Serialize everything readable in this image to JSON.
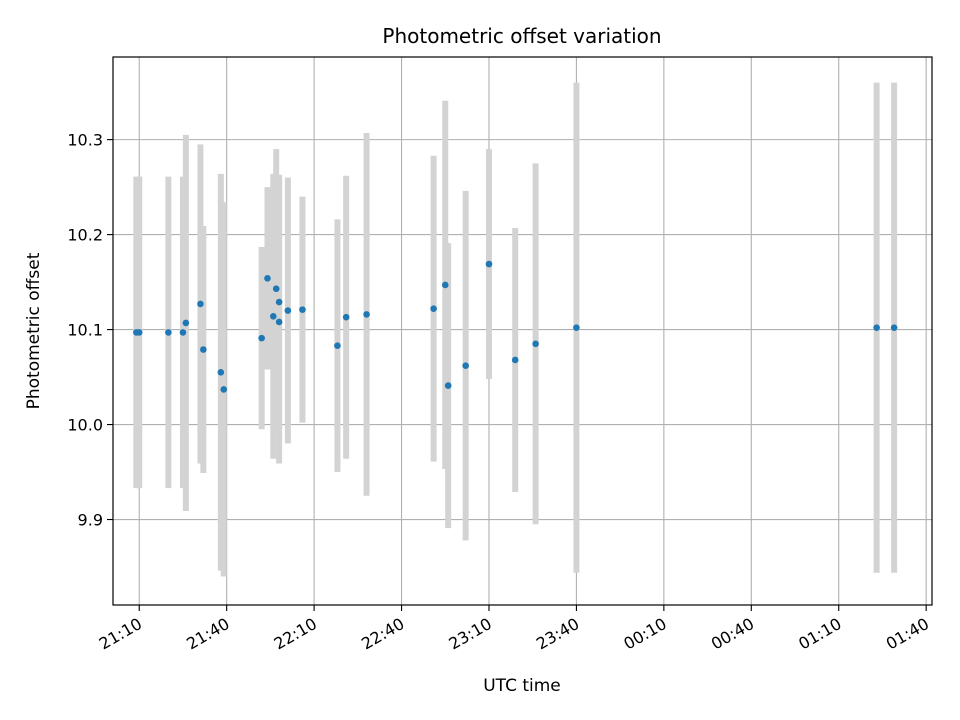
{
  "chart_data": {
    "type": "scatter",
    "title": "Photometric offset variation",
    "xlabel": "UTC time",
    "ylabel": "Photometric offset",
    "xlim": [
      "21:01",
      "01:42"
    ],
    "ylim": [
      9.81,
      10.387
    ],
    "grid": true,
    "x_ticks": [
      "21:10",
      "21:40",
      "22:10",
      "22:40",
      "23:10",
      "23:40",
      "00:10",
      "00:40",
      "01:10",
      "01:40"
    ],
    "y_ticks": [
      "9.9",
      "10.0",
      "10.1",
      "10.2",
      "10.3"
    ],
    "colors": {
      "point": "#1f77b4",
      "errorbar": "#d3d3d3",
      "grid": "#b0b0b0"
    },
    "series": [
      {
        "points": [
          {
            "x": "21:09",
            "y": 10.097,
            "err": 0.164
          },
          {
            "x": "21:10",
            "y": 10.097,
            "err": 0.164
          },
          {
            "x": "21:20",
            "y": 10.097,
            "err": 0.164
          },
          {
            "x": "21:25",
            "y": 10.097,
            "err": 0.164
          },
          {
            "x": "21:26",
            "y": 10.107,
            "err": 0.198
          },
          {
            "x": "21:31",
            "y": 10.127,
            "err": 0.168
          },
          {
            "x": "21:32",
            "y": 10.079,
            "err": 0.13
          },
          {
            "x": "21:38",
            "y": 10.055,
            "err": 0.209
          },
          {
            "x": "21:39",
            "y": 10.037,
            "err": 0.197
          },
          {
            "x": "21:52",
            "y": 10.091,
            "err": 0.096
          },
          {
            "x": "21:54",
            "y": 10.154,
            "err": 0.096
          },
          {
            "x": "21:56",
            "y": 10.114,
            "err": 0.15
          },
          {
            "x": "21:57",
            "y": 10.143,
            "err": 0.147
          },
          {
            "x": "21:58",
            "y": 10.129,
            "err": 0.134
          },
          {
            "x": "21:58",
            "y": 10.108,
            "err": 0.149
          },
          {
            "x": "22:01",
            "y": 10.12,
            "err": 0.14
          },
          {
            "x": "22:06",
            "y": 10.121,
            "err": 0.119
          },
          {
            "x": "22:18",
            "y": 10.083,
            "err": 0.133
          },
          {
            "x": "22:21",
            "y": 10.113,
            "err": 0.149
          },
          {
            "x": "22:28",
            "y": 10.116,
            "err": 0.191
          },
          {
            "x": "22:51",
            "y": 10.122,
            "err": 0.161
          },
          {
            "x": "22:55",
            "y": 10.147,
            "err": 0.194
          },
          {
            "x": "22:56",
            "y": 10.041,
            "err": 0.15
          },
          {
            "x": "23:02",
            "y": 10.062,
            "err": 0.184
          },
          {
            "x": "23:10",
            "y": 10.169,
            "err": 0.121
          },
          {
            "x": "23:19",
            "y": 10.068,
            "err": 0.139
          },
          {
            "x": "23:26",
            "y": 10.085,
            "err": 0.19
          },
          {
            "x": "23:40",
            "y": 10.102,
            "err": 0.258
          },
          {
            "x": "01:23",
            "y": 10.102,
            "err": 0.258
          },
          {
            "x": "01:29",
            "y": 10.102,
            "err": 0.258
          }
        ]
      }
    ]
  }
}
